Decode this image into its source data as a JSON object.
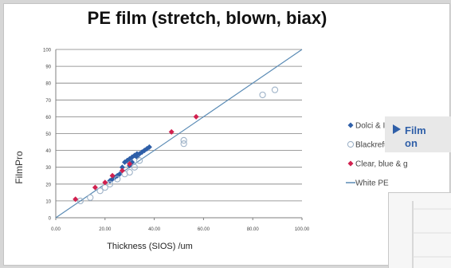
{
  "chart_data": {
    "type": "scatter",
    "title": "PE film (stretch, blown, biax)",
    "xlabel": "Thickness (SIOS) /um",
    "ylabel": "FilmPro",
    "xlim": [
      0,
      100
    ],
    "ylim": [
      0,
      100
    ],
    "xticks": [
      "0.00",
      "20.00",
      "40.00",
      "60.00",
      "80.00",
      "100.00"
    ],
    "yticks": [
      "0",
      "10",
      "20",
      "30",
      "40",
      "50",
      "60",
      "70",
      "80",
      "90",
      "100"
    ],
    "grid": "horizontal",
    "legend_position": "right",
    "series": [
      {
        "name": "Dolci & Interpla",
        "marker": "diamond",
        "color": "#2f5fa8",
        "points": [
          [
            22,
            22
          ],
          [
            23,
            23
          ],
          [
            24,
            24
          ],
          [
            25,
            25
          ],
          [
            27,
            30
          ],
          [
            28,
            33
          ],
          [
            29,
            34
          ],
          [
            30,
            35
          ],
          [
            31,
            36
          ],
          [
            32,
            37
          ],
          [
            33,
            38
          ],
          [
            34,
            38
          ],
          [
            35,
            39
          ],
          [
            36,
            40
          ],
          [
            37,
            41
          ],
          [
            38,
            42
          ],
          [
            31,
            33
          ],
          [
            30,
            31
          ],
          [
            33,
            36
          ],
          [
            26,
            26
          ]
        ]
      },
      {
        "name": "Blackrefuse sa",
        "marker": "circle-open",
        "color": "#9fb3c8",
        "points": [
          [
            10,
            10
          ],
          [
            14,
            12
          ],
          [
            18,
            16
          ],
          [
            20,
            18
          ],
          [
            22,
            20
          ],
          [
            25,
            23
          ],
          [
            28,
            26
          ],
          [
            30,
            27
          ],
          [
            32,
            30
          ],
          [
            34,
            34
          ],
          [
            52,
            44
          ],
          [
            52,
            46
          ],
          [
            84,
            73
          ],
          [
            89,
            76
          ]
        ]
      },
      {
        "name": "Clear, blue & g",
        "marker": "diamond",
        "color": "#d1214f",
        "points": [
          [
            8,
            11
          ],
          [
            16,
            18
          ],
          [
            20,
            21
          ],
          [
            23,
            25
          ],
          [
            27,
            28
          ],
          [
            30,
            32
          ],
          [
            47,
            51
          ],
          [
            57,
            60
          ]
        ]
      },
      {
        "name": "White PE",
        "marker": "line",
        "color": "#5a8bb5",
        "points": []
      }
    ],
    "line": {
      "x": [
        0,
        100
      ],
      "y": [
        0,
        100
      ],
      "color": "#5a8bb5"
    }
  },
  "right_panel": {
    "callout_text": "Film",
    "callout_text2": "on"
  }
}
